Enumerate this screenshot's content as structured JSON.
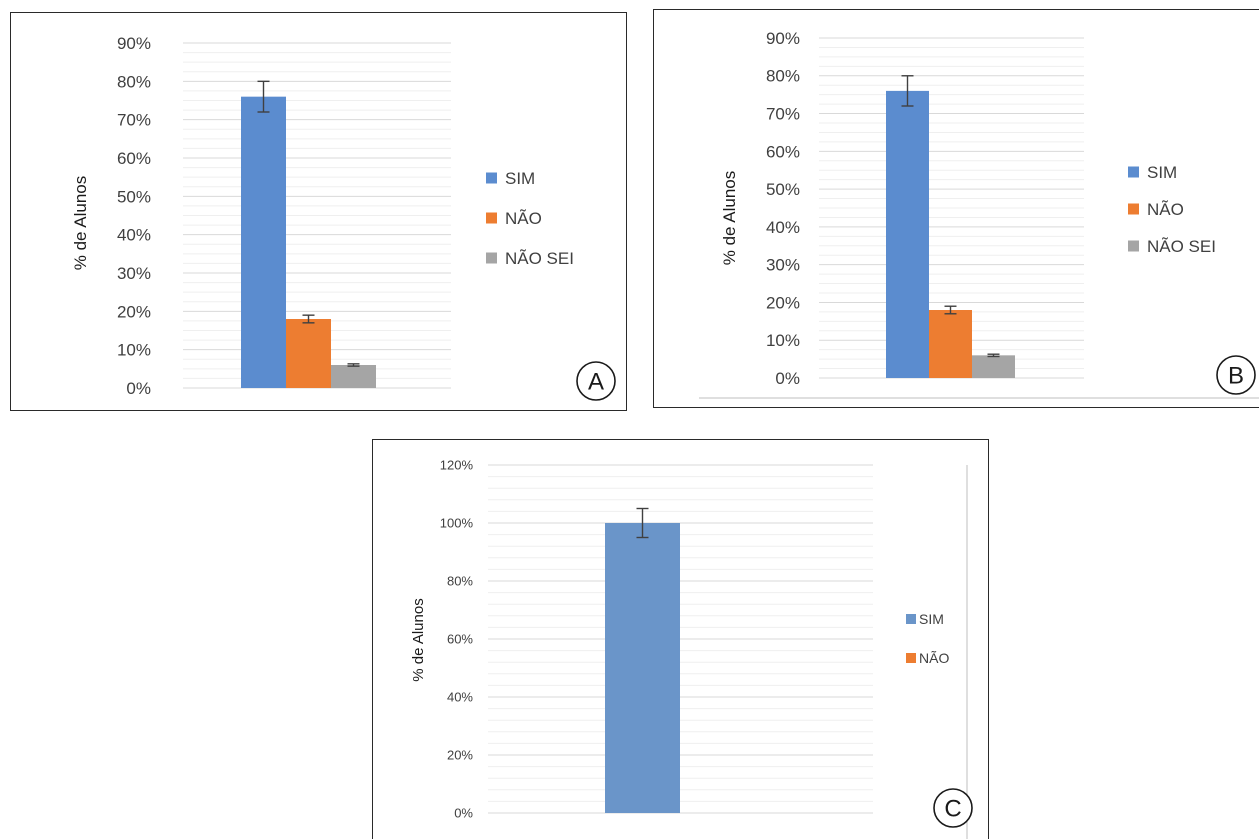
{
  "chart_data": [
    {
      "panel_label": "A",
      "type": "bar",
      "ylabel": "% de Alunos",
      "ylim": [
        0,
        90
      ],
      "yticks": [
        "0%",
        "10%",
        "20%",
        "30%",
        "40%",
        "50%",
        "60%",
        "70%",
        "80%",
        "90%"
      ],
      "grid": true,
      "legend_position": "right",
      "series": [
        {
          "name": "SIM",
          "value": 76,
          "error": 4,
          "color": "#5b8ccf"
        },
        {
          "name": "NÃO",
          "value": 18,
          "error": 1,
          "color": "#ed7d31"
        },
        {
          "name": "NÃO SEI",
          "value": 6,
          "error": 0.3,
          "color": "#a5a5a5"
        }
      ]
    },
    {
      "panel_label": "B",
      "type": "bar",
      "ylabel": "% de Alunos",
      "ylim": [
        0,
        90
      ],
      "yticks": [
        "0%",
        "10%",
        "20%",
        "30%",
        "40%",
        "50%",
        "60%",
        "70%",
        "80%",
        "90%"
      ],
      "grid": true,
      "legend_position": "right",
      "series": [
        {
          "name": "SIM",
          "value": 76,
          "error": 4,
          "color": "#5b8ccf"
        },
        {
          "name": "NÃO",
          "value": 18,
          "error": 1,
          "color": "#ed7d31"
        },
        {
          "name": "NÃO SEI",
          "value": 6,
          "error": 0.3,
          "color": "#a5a5a5"
        }
      ]
    },
    {
      "panel_label": "C",
      "type": "bar",
      "ylabel": "% de Alunos",
      "ylim": [
        0,
        120
      ],
      "yticks": [
        "0%",
        "20%",
        "40%",
        "60%",
        "80%",
        "100%",
        "120%"
      ],
      "grid": true,
      "legend_position": "right",
      "series": [
        {
          "name": "SIM",
          "value": 100,
          "error": 5,
          "color": "#6a95c9"
        },
        {
          "name": "NÃO",
          "value": 0,
          "error": 0,
          "color": "#ed7d31"
        }
      ]
    }
  ]
}
